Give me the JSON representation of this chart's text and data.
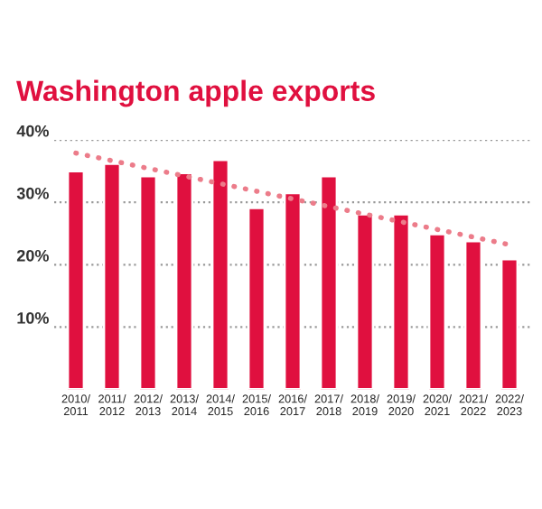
{
  "chart_data": {
    "type": "bar",
    "title": "Washington apple exports",
    "categories": [
      "2010/\n2011",
      "2011/\n2012",
      "2012/\n2013",
      "2013/\n2014",
      "2014/\n2015",
      "2015/\n2016",
      "2016/\n2017",
      "2017/\n2018",
      "2018/\n2019",
      "2019/\n2020",
      "2020/\n2021",
      "2021/\n2022",
      "2022/\n2023"
    ],
    "series": [
      {
        "color": "#e0103f",
        "values": [
          35.0,
          36.2,
          34.2,
          34.7,
          36.8,
          29.1,
          31.5,
          34.2,
          28.1,
          28.1,
          24.9,
          23.8,
          20.9
        ]
      },
      {
        "type": "line",
        "color": "#ec7c8a",
        "line_style": "dotted",
        "values": [
          37.9,
          null,
          null,
          null,
          null,
          null,
          null,
          null,
          null,
          null,
          null,
          null,
          23.2
        ]
      }
    ],
    "ylim": [
      0,
      40
    ],
    "yticks": [
      {
        "value": 10,
        "label": "10%"
      },
      {
        "value": 20,
        "label": "20%"
      },
      {
        "value": 30,
        "label": "30%"
      },
      {
        "value": 40,
        "label": "40%"
      }
    ],
    "grid": "y"
  }
}
